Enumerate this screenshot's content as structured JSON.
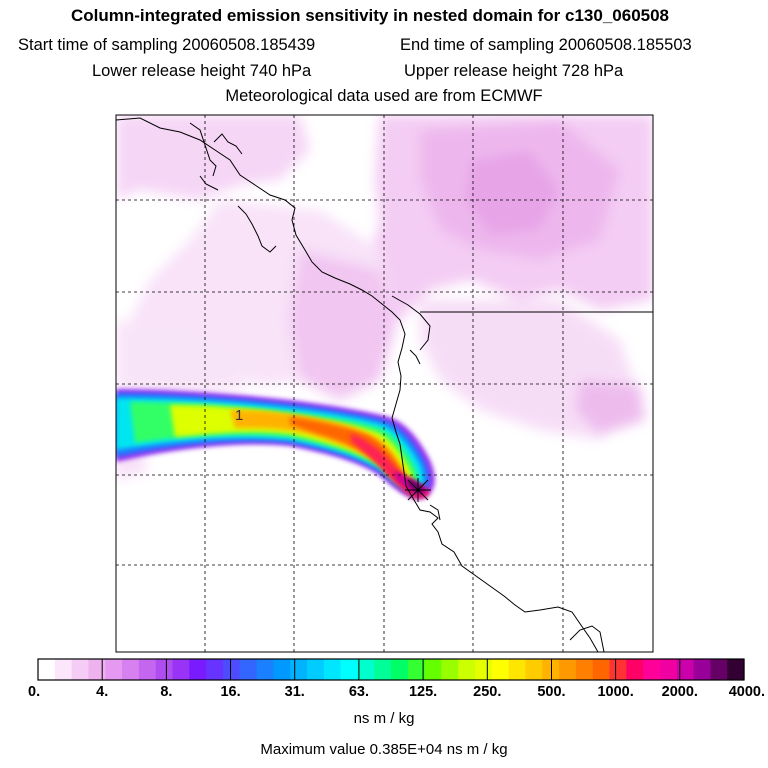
{
  "header": {
    "title": "Column-integrated emission sensitivity in nested domain for c130_060508",
    "start_label": "Start time of sampling 20060508.185439",
    "end_label": "End time of sampling 20060508.185503",
    "lower_label": "Lower release height  740 hPa",
    "upper_label": "Upper release height  728 hPa",
    "met_label": "Meteorological data used are from ECMWF"
  },
  "map": {
    "plume_label": "1"
  },
  "colorbar": {
    "tick_labels": [
      "0.",
      "4.",
      "8.",
      "16.",
      "31.",
      "63.",
      "125.",
      "250.",
      "500.",
      "1000.",
      "2000.",
      "4000."
    ],
    "colors": [
      "#ffffff",
      "#fbe6fb",
      "#f5ccf5",
      "#eeb3ee",
      "#e699f0",
      "#d780f0",
      "#c466f0",
      "#b04df0",
      "#9933f5",
      "#7a1aff",
      "#6633ff",
      "#4d4dff",
      "#3366ff",
      "#1a80ff",
      "#0099ff",
      "#00b3ff",
      "#00ccff",
      "#00e6ff",
      "#00ffff",
      "#00ffcc",
      "#00ff99",
      "#00ff66",
      "#33ff33",
      "#66ff00",
      "#99ff00",
      "#ccff00",
      "#e6ff00",
      "#ffff00",
      "#ffe600",
      "#ffcc00",
      "#ffb300",
      "#ff9900",
      "#ff8000",
      "#ff6600",
      "#ff3333",
      "#ff0066",
      "#ff0099",
      "#f000a0",
      "#cc00aa",
      "#990099",
      "#660066",
      "#330033"
    ],
    "units": "ns m / kg"
  },
  "footer": {
    "max_value": "Maximum value  0.385E+04 ns m / kg"
  }
}
